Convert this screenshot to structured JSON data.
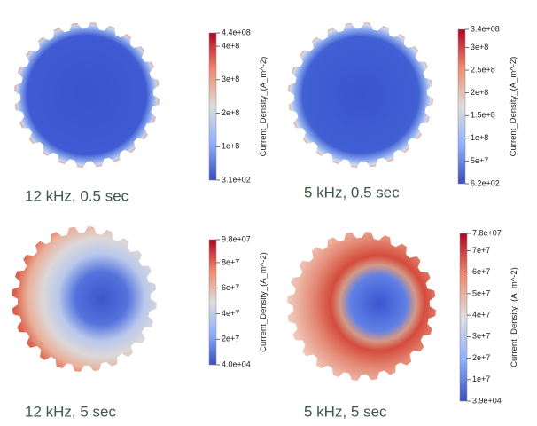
{
  "panels": [
    {
      "caption": "12 kHz, 0.5 sec",
      "colorbar": {
        "title": "Current_Density_(A_m^-2)",
        "ticks": [
          "4.4e+08",
          "4e+8",
          "3e+8",
          "2e+8",
          "1e+8",
          "3.1e+02"
        ]
      }
    },
    {
      "caption": "5 kHz, 0.5 sec",
      "colorbar": {
        "title": "Current_Density_(A_m^-2)",
        "ticks": [
          "3.4e+08",
          "3e+8",
          "2.5e+8",
          "2e+8",
          "1.5e+8",
          "1e+8",
          "5e+7",
          "6.2e+02"
        ]
      }
    },
    {
      "caption": "12 kHz, 5 sec",
      "colorbar": {
        "title": "Current_Density_(A_m^-2)",
        "ticks": [
          "9.8e+07",
          "8e+7",
          "6e+7",
          "4e+7",
          "2e+7",
          "4.0e+04"
        ]
      }
    },
    {
      "caption": "5 kHz, 5 sec",
      "colorbar": {
        "title": "Current_Density_(A_m^-2)",
        "ticks": [
          "7.8e+07",
          "7e+7",
          "6e+7",
          "5e+7",
          "4e+7",
          "3e+7",
          "2e+7",
          "1e+7",
          "3.9e+04"
        ]
      }
    }
  ]
}
